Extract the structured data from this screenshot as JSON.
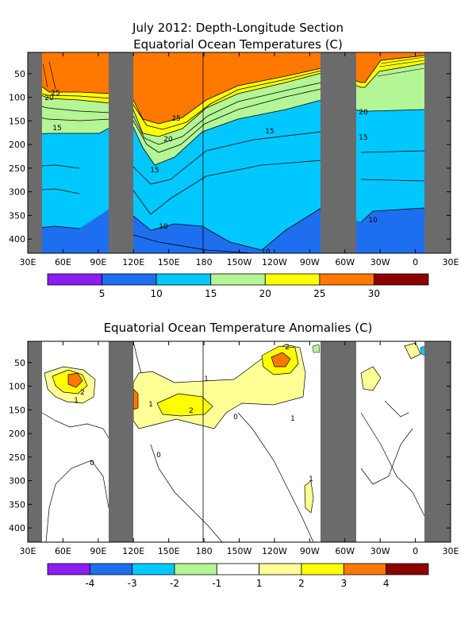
{
  "chart_data": [
    {
      "type": "heatmap",
      "title": "July 2012: Depth-Longitude Section",
      "subtitle": "Equatorial Ocean Temperatures (C)",
      "x_tick_labels": [
        "30E",
        "60E",
        "90E",
        "120E",
        "150E",
        "180",
        "150W",
        "120W",
        "90W",
        "60W",
        "30W",
        "0",
        "30E"
      ],
      "x_ticks_deg": [
        30,
        60,
        90,
        120,
        150,
        180,
        210,
        240,
        270,
        300,
        330,
        360,
        390
      ],
      "y_tick_labels": [
        "50",
        "100",
        "150",
        "200",
        "250",
        "300",
        "350",
        "400"
      ],
      "y_ticks": [
        50,
        100,
        150,
        200,
        250,
        300,
        350,
        400
      ],
      "xlim": [
        30,
        390
      ],
      "ylim": [
        430,
        5
      ],
      "land_masks_deg": [
        [
          30,
          43
        ],
        [
          100,
          122
        ],
        [
          285,
          318
        ],
        [
          368,
          390
        ]
      ],
      "contour_labels": [
        "25",
        "20",
        "15",
        "25",
        "20",
        "15",
        "10",
        "15",
        "20",
        "15",
        "10",
        "10"
      ],
      "colorbar": {
        "ticks": [
          "5",
          "10",
          "15",
          "20",
          "25",
          "30"
        ],
        "colors": [
          "#8c1cf0",
          "#1e6ef0",
          "#00c8ff",
          "#b4f596",
          "#ffff00",
          "#ff7800",
          "#8c0000"
        ]
      }
    },
    {
      "type": "heatmap",
      "title": "Equatorial Ocean Temperature Anomalies (C)",
      "x_tick_labels": [
        "30E",
        "60E",
        "90E",
        "120E",
        "150E",
        "180",
        "150W",
        "120W",
        "90W",
        "60W",
        "30W",
        "0",
        "30E"
      ],
      "x_ticks_deg": [
        30,
        60,
        90,
        120,
        150,
        180,
        210,
        240,
        270,
        300,
        330,
        360,
        390
      ],
      "y_tick_labels": [
        "50",
        "100",
        "150",
        "200",
        "250",
        "300",
        "350",
        "400"
      ],
      "y_ticks": [
        50,
        100,
        150,
        200,
        250,
        300,
        350,
        400
      ],
      "xlim": [
        30,
        390
      ],
      "ylim": [
        430,
        5
      ],
      "land_masks_deg": [
        [
          30,
          43
        ],
        [
          100,
          122
        ],
        [
          285,
          318
        ],
        [
          368,
          390
        ]
      ],
      "contour_labels": [
        "2",
        "1",
        "1",
        "2",
        "1",
        "0",
        "0",
        "2",
        "1",
        "0",
        "1"
      ],
      "colorbar": {
        "ticks": [
          "-4",
          "-3",
          "-2",
          "-1",
          "1",
          "2",
          "3",
          "4"
        ],
        "colors": [
          "#8c1cf0",
          "#1e6ef0",
          "#00c8ff",
          "#b4f596",
          "#ffffff",
          "#ffff96",
          "#ffff00",
          "#ff7800",
          "#8c0000"
        ]
      }
    }
  ]
}
